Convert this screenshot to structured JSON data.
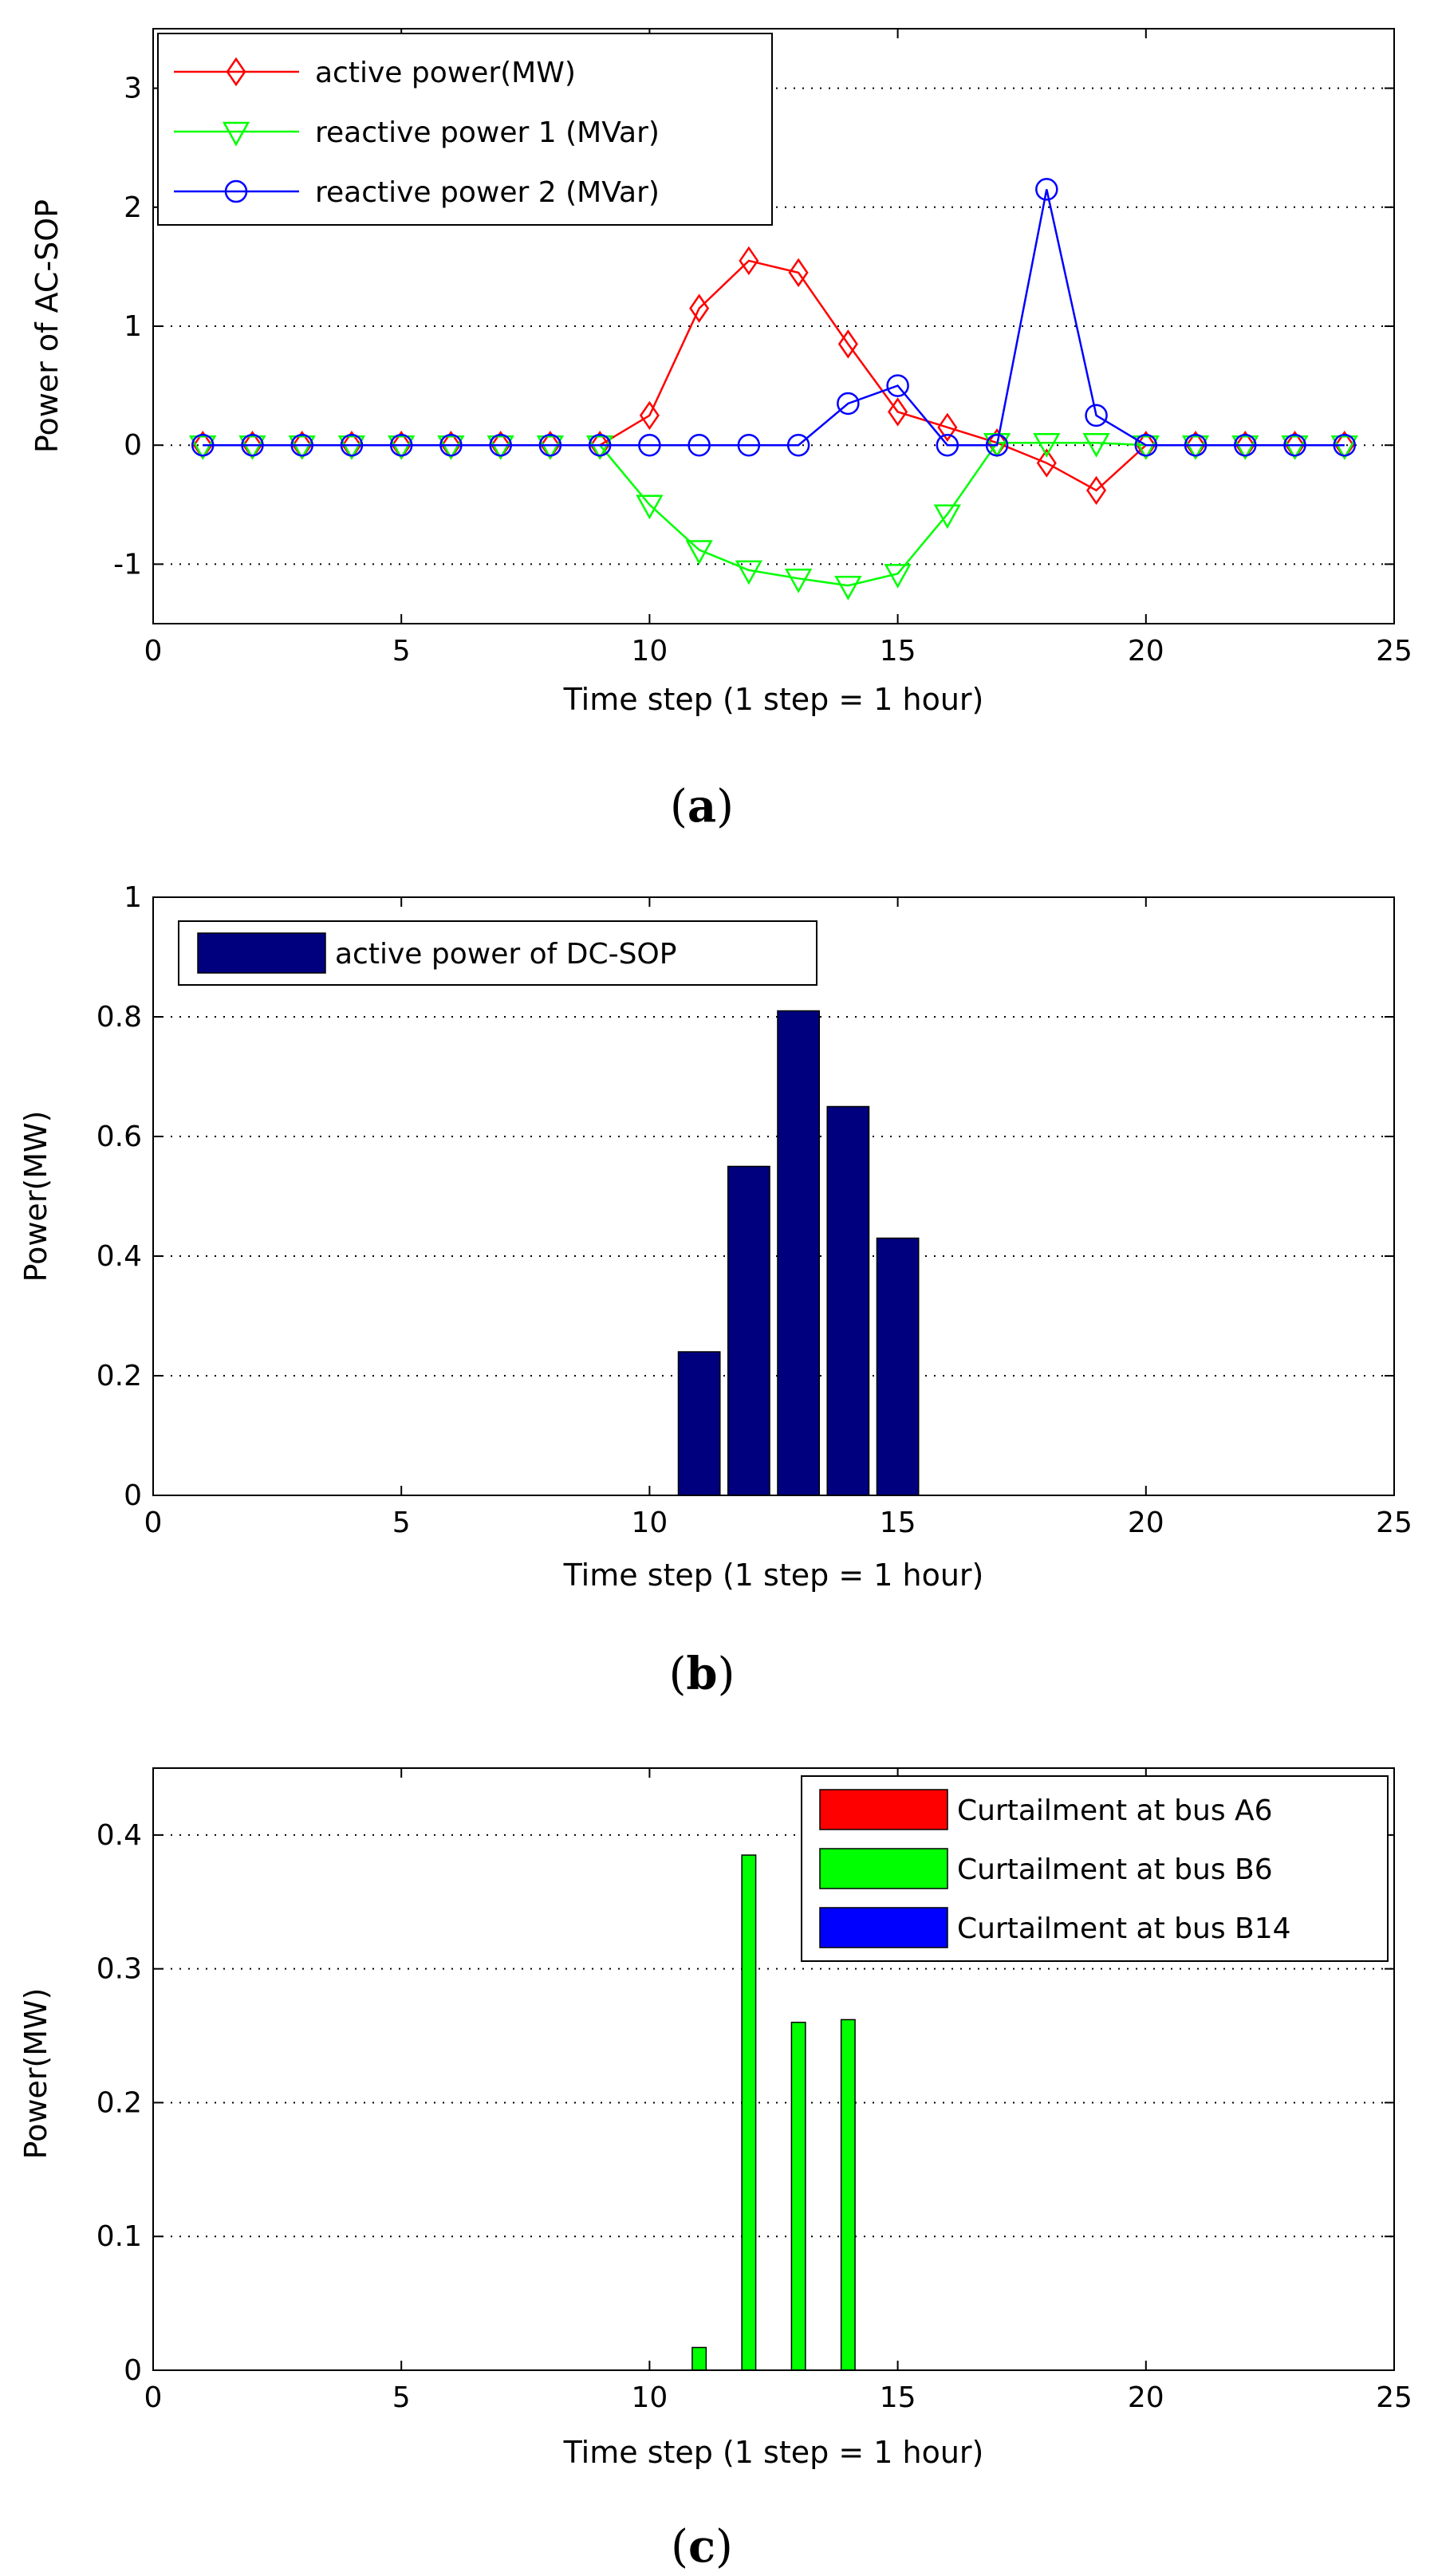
{
  "chart_data": [
    {
      "id": "a",
      "type": "line",
      "caption_open": "(",
      "caption_letter": "a",
      "caption_close": ")",
      "xlabel": "Time step (1 step = 1 hour)",
      "ylabel": "Power of AC-SOP",
      "xlim": [
        0,
        25
      ],
      "ylim": [
        -1.5,
        3.5
      ],
      "xticks": [
        "0",
        "5",
        "10",
        "15",
        "20",
        "25"
      ],
      "yticks": [
        "-1",
        "0",
        "1",
        "2",
        "3"
      ],
      "grid": "horizontal dotted",
      "legend_position": "top-left",
      "x": [
        1,
        2,
        3,
        4,
        5,
        6,
        7,
        8,
        9,
        10,
        11,
        12,
        13,
        14,
        15,
        16,
        17,
        18,
        19,
        20,
        21,
        22,
        23,
        24
      ],
      "series": [
        {
          "name": "active power(MW)",
          "color": "#ff0000",
          "marker": "diamond",
          "values": [
            0,
            0,
            0,
            0,
            0,
            0,
            0,
            0,
            0,
            0.25,
            1.15,
            1.55,
            1.45,
            0.85,
            0.28,
            0.15,
            0.02,
            -0.15,
            -0.38,
            0,
            0,
            0,
            0,
            0
          ]
        },
        {
          "name": "reactive power 1 (MVar)",
          "color": "#00ff00",
          "marker": "triangle-down",
          "values": [
            0,
            0,
            0,
            0,
            0,
            0,
            0,
            0,
            0,
            -0.5,
            -0.88,
            -1.05,
            -1.12,
            -1.18,
            -1.08,
            -0.58,
            0.02,
            0.02,
            0.02,
            0,
            0,
            0,
            0,
            0
          ]
        },
        {
          "name": "reactive power 2 (MVar)",
          "color": "#0000ff",
          "marker": "circle",
          "values": [
            0,
            0,
            0,
            0,
            0,
            0,
            0,
            0,
            0,
            0,
            0,
            0,
            0,
            0.35,
            0.5,
            0,
            0,
            2.15,
            0.25,
            0,
            0,
            0,
            0,
            0
          ]
        }
      ]
    },
    {
      "id": "b",
      "type": "bar",
      "caption_open": "(",
      "caption_letter": "b",
      "caption_close": ")",
      "xlabel": "Time step (1 step = 1 hour)",
      "ylabel": "Power(MW)",
      "xlim": [
        0,
        25
      ],
      "ylim": [
        0,
        1
      ],
      "xticks": [
        "0",
        "5",
        "10",
        "15",
        "20",
        "25"
      ],
      "yticks": [
        "0",
        "0.2",
        "0.4",
        "0.6",
        "0.8",
        "1"
      ],
      "grid": "horizontal dotted",
      "legend_position": "top-left",
      "series": [
        {
          "name": "active power of DC-SOP",
          "color": "#00007f",
          "x": [
            11,
            12,
            13,
            14,
            15
          ],
          "values": [
            0.24,
            0.55,
            0.81,
            0.65,
            0.43
          ]
        }
      ]
    },
    {
      "id": "c",
      "type": "bar",
      "caption_open": "(",
      "caption_letter": "c",
      "caption_close": ")",
      "xlabel": "Time step (1 step = 1 hour)",
      "ylabel": "Power(MW)",
      "xlim": [
        0,
        25
      ],
      "ylim": [
        0,
        0.45
      ],
      "xticks": [
        "0",
        "5",
        "10",
        "15",
        "20",
        "25"
      ],
      "yticks": [
        "0",
        "0.1",
        "0.2",
        "0.3",
        "0.4"
      ],
      "grid": "horizontal dotted",
      "legend_position": "top-right",
      "series": [
        {
          "name": "Curtailment at bus A6",
          "color": "#ff0000",
          "x": [],
          "values": []
        },
        {
          "name": "Curtailment at bus B6",
          "color": "#00ff00",
          "x": [
            11,
            12,
            13,
            14
          ],
          "values": [
            0.017,
            0.385,
            0.26,
            0.262
          ]
        },
        {
          "name": "Curtailment at bus B14",
          "color": "#0000ff",
          "x": [],
          "values": []
        }
      ]
    }
  ]
}
